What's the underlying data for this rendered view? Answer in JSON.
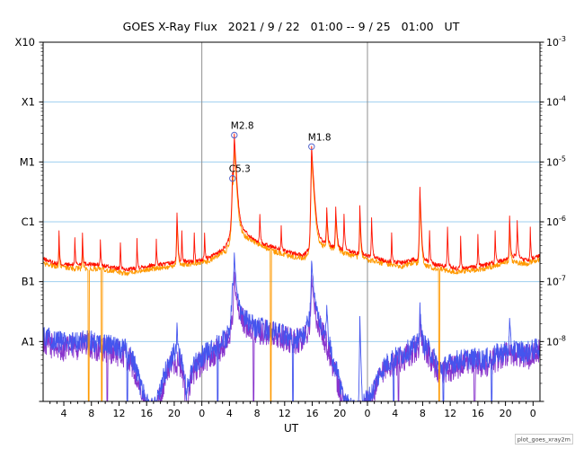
{
  "watermark": "plot_goes_xray2m",
  "chart_data": {
    "type": "line",
    "title": "GOES X-Ray Flux   2021 / 9 / 22   01:00 -- 9 / 25   01:00   UT",
    "xlabel": "UT",
    "x_unit": "hours since 2021-09-22 01:00 UT",
    "x_range": [
      0,
      72
    ],
    "y_scale": "log10 flux (watts/m^2)",
    "y_axis_log10_range": [
      -9,
      -3
    ],
    "grid": true,
    "x_ticks": {
      "positions": [
        3,
        7,
        11,
        15,
        19,
        23,
        27,
        31,
        35,
        39,
        43,
        47,
        51,
        55,
        59,
        63,
        67,
        71
      ],
      "labels": [
        "4",
        "8",
        "12",
        "16",
        "20",
        "0",
        "4",
        "8",
        "12",
        "16",
        "20",
        "0",
        "4",
        "8",
        "12",
        "16",
        "20",
        "0"
      ]
    },
    "y_ticks_left": {
      "labels": [
        "X10",
        "X1",
        "M1",
        "C1",
        "B1",
        "A1"
      ],
      "log10": [
        -3,
        -4,
        -5,
        -6,
        -7,
        -8
      ]
    },
    "y_ticks_right": {
      "mantissa": "10",
      "exponents": [
        "-3",
        "-4",
        "-5",
        "-6",
        "-7",
        "-8"
      ],
      "log10": [
        -3,
        -4,
        -5,
        -6,
        -7,
        -8
      ]
    },
    "gridlines": {
      "horizontal_log10": [
        -4,
        -5,
        -6,
        -7,
        -8
      ],
      "horizontal_color": "#9fcfef",
      "vertical_hours": [
        23,
        47
      ],
      "vertical_color": "#909090"
    },
    "flare_marker_color": "#5566cc",
    "flares": [
      {
        "label": "M2.8",
        "t": 27.7,
        "flux": 2.8e-05
      },
      {
        "label": "C5.3",
        "t": 27.45,
        "flux": 5.3e-06
      },
      {
        "label": "M1.8",
        "t": 38.9,
        "flux": 1.8e-05
      }
    ],
    "series": [
      {
        "name": "xray-short-secondary",
        "color": "#8833cc",
        "noise": 0.22,
        "seed": 97,
        "base": [
          [
            0,
            -8.02
          ],
          [
            2,
            -8.1
          ],
          [
            4,
            -8.12
          ],
          [
            6,
            -8.06
          ],
          [
            8,
            -8.12
          ],
          [
            10,
            -8.16
          ],
          [
            12,
            -8.24
          ],
          [
            13,
            -8.4
          ],
          [
            14,
            -8.85
          ],
          [
            15,
            -9.15
          ],
          [
            16,
            -9.2
          ],
          [
            17,
            -8.9
          ],
          [
            18,
            -8.5
          ],
          [
            19,
            -8.32
          ],
          [
            20,
            -8.42
          ],
          [
            20.8,
            -8.95
          ],
          [
            21.5,
            -8.6
          ],
          [
            22.5,
            -8.4
          ],
          [
            24,
            -8.25
          ],
          [
            25.5,
            -8.15
          ],
          [
            26.8,
            -8.0
          ],
          [
            27.7,
            -7.45
          ],
          [
            28.5,
            -7.6
          ],
          [
            29.5,
            -7.72
          ],
          [
            30.5,
            -7.82
          ],
          [
            32,
            -7.85
          ],
          [
            33.5,
            -7.9
          ],
          [
            35,
            -7.96
          ],
          [
            36.5,
            -8.0
          ],
          [
            37.8,
            -7.95
          ],
          [
            38.9,
            -7.6
          ],
          [
            39.7,
            -7.7
          ],
          [
            40.5,
            -7.85
          ],
          [
            41.5,
            -8.2
          ],
          [
            42.5,
            -8.6
          ],
          [
            43.5,
            -9.0
          ],
          [
            44.5,
            -9.2
          ],
          [
            45.5,
            -9.25
          ],
          [
            46.5,
            -9.1
          ],
          [
            47.5,
            -9.0
          ],
          [
            48.5,
            -8.7
          ],
          [
            49.5,
            -8.5
          ],
          [
            50.5,
            -8.4
          ],
          [
            52,
            -8.3
          ],
          [
            53.5,
            -8.18
          ],
          [
            54.8,
            -8.08
          ],
          [
            56,
            -8.25
          ],
          [
            57.5,
            -8.55
          ],
          [
            58.5,
            -8.5
          ],
          [
            60,
            -8.4
          ],
          [
            62,
            -8.36
          ],
          [
            64,
            -8.38
          ],
          [
            66,
            -8.28
          ],
          [
            68,
            -8.2
          ],
          [
            70,
            -8.26
          ],
          [
            72,
            -8.18
          ]
        ],
        "spikes": [
          [
            27.7,
            -6.95,
            0.16,
            0.4
          ],
          [
            38.9,
            -7.0,
            0.14,
            0.5
          ],
          [
            54.6,
            -7.7,
            0.12,
            0.25
          ]
        ],
        "dropouts": [
          [
            9.3,
            0.15
          ],
          [
            21.0,
            0.2
          ],
          [
            30.5,
            0.12
          ],
          [
            51.5,
            0.15
          ],
          [
            62.5,
            0.2
          ]
        ]
      },
      {
        "name": "xray-short-primary",
        "color": "#4455ee",
        "noise": 0.18,
        "seed": 55,
        "base": [
          [
            0,
            -7.9
          ],
          [
            2,
            -8.0
          ],
          [
            4,
            -8.02
          ],
          [
            6,
            -7.98
          ],
          [
            8,
            -8.02
          ],
          [
            10,
            -8.06
          ],
          [
            12,
            -8.14
          ],
          [
            13,
            -8.3
          ],
          [
            14,
            -8.7
          ],
          [
            15,
            -9.05
          ],
          [
            16,
            -9.1
          ],
          [
            17,
            -8.8
          ],
          [
            18,
            -8.4
          ],
          [
            19,
            -8.2
          ],
          [
            20,
            -8.3
          ],
          [
            20.8,
            -8.85
          ],
          [
            21.5,
            -8.5
          ],
          [
            22.5,
            -8.3
          ],
          [
            24,
            -8.15
          ],
          [
            25.5,
            -8.05
          ],
          [
            26.8,
            -7.9
          ],
          [
            27.7,
            -7.35
          ],
          [
            28.5,
            -7.5
          ],
          [
            29.5,
            -7.65
          ],
          [
            30.5,
            -7.75
          ],
          [
            32,
            -7.78
          ],
          [
            33.5,
            -7.84
          ],
          [
            35,
            -7.9
          ],
          [
            36.5,
            -7.95
          ],
          [
            37.8,
            -7.9
          ],
          [
            38.9,
            -7.5
          ],
          [
            39.7,
            -7.6
          ],
          [
            40.5,
            -7.78
          ],
          [
            41.5,
            -8.1
          ],
          [
            42.5,
            -8.5
          ],
          [
            43.5,
            -8.9
          ],
          [
            44.5,
            -9.1
          ],
          [
            45.5,
            -9.15
          ],
          [
            46.5,
            -9.0
          ],
          [
            47.5,
            -8.9
          ],
          [
            48.5,
            -8.6
          ],
          [
            49.5,
            -8.4
          ],
          [
            50.5,
            -8.3
          ],
          [
            52,
            -8.22
          ],
          [
            53.5,
            -8.1
          ],
          [
            54.8,
            -8.0
          ],
          [
            56,
            -8.15
          ],
          [
            57.5,
            -8.45
          ],
          [
            58.5,
            -8.4
          ],
          [
            60,
            -8.32
          ],
          [
            62,
            -8.28
          ],
          [
            64,
            -8.3
          ],
          [
            66,
            -8.2
          ],
          [
            68,
            -8.12
          ],
          [
            70,
            -8.18
          ],
          [
            72,
            -8.1
          ]
        ],
        "spikes": [
          [
            19.4,
            -7.8,
            0.12,
            0.2
          ],
          [
            27.45,
            -7.2,
            0.2,
            0.25
          ],
          [
            27.7,
            -6.6,
            0.16,
            0.4
          ],
          [
            38.9,
            -6.7,
            0.14,
            0.5
          ],
          [
            41.1,
            -7.5,
            0.12,
            0.25
          ],
          [
            45.9,
            -7.6,
            0.1,
            0.2
          ],
          [
            54.6,
            -7.45,
            0.12,
            0.25
          ],
          [
            67.6,
            -7.8,
            0.1,
            0.2
          ]
        ],
        "dropouts": [
          [
            12.2,
            0.15
          ],
          [
            25.3,
            0.12
          ],
          [
            36.2,
            0.12
          ],
          [
            50.8,
            0.15
          ],
          [
            58.0,
            0.15
          ],
          [
            65.0,
            0.12
          ]
        ]
      },
      {
        "name": "xray-long-secondary",
        "color": "#ff9900",
        "noise": 0.045,
        "seed": 77,
        "base": [
          [
            0,
            -6.7
          ],
          [
            4,
            -6.78
          ],
          [
            8,
            -6.78
          ],
          [
            12,
            -6.86
          ],
          [
            16,
            -6.78
          ],
          [
            20,
            -6.72
          ],
          [
            24,
            -6.66
          ],
          [
            26.5,
            -6.48
          ],
          [
            28,
            -6.12
          ],
          [
            29.5,
            -6.26
          ],
          [
            31,
            -6.36
          ],
          [
            33,
            -6.48
          ],
          [
            36,
            -6.58
          ],
          [
            38,
            -6.6
          ],
          [
            39.3,
            -6.34
          ],
          [
            41,
            -6.42
          ],
          [
            44,
            -6.54
          ],
          [
            48,
            -6.66
          ],
          [
            52,
            -6.74
          ],
          [
            54,
            -6.68
          ],
          [
            57,
            -6.78
          ],
          [
            60,
            -6.84
          ],
          [
            64,
            -6.78
          ],
          [
            67.5,
            -6.66
          ],
          [
            70,
            -6.7
          ],
          [
            72,
            -6.62
          ]
        ],
        "spikes": [
          [
            2.3,
            -6.4,
            0.08,
            0.15
          ],
          [
            5.7,
            -6.45,
            0.08,
            0.15
          ],
          [
            19.4,
            -6.05,
            0.12,
            0.22
          ],
          [
            27.45,
            -5.4,
            0.2,
            0.25
          ],
          [
            27.7,
            -4.72,
            0.16,
            0.45
          ],
          [
            38.9,
            -4.92,
            0.14,
            0.5
          ],
          [
            41.1,
            -6.0,
            0.12,
            0.25
          ],
          [
            42.4,
            -6.0,
            0.12,
            0.3
          ],
          [
            45.9,
            -5.95,
            0.1,
            0.22
          ],
          [
            54.6,
            -5.6,
            0.12,
            0.28
          ],
          [
            67.6,
            -6.15,
            0.1,
            0.2
          ]
        ],
        "dropouts": [
          [
            6.6,
            0.12
          ],
          [
            8.5,
            0.12
          ],
          [
            33.0,
            0.12
          ],
          [
            57.4,
            0.12
          ]
        ]
      },
      {
        "name": "xray-long-primary",
        "color": "#ff1100",
        "noise": 0.035,
        "seed": 13,
        "base": [
          [
            0,
            -6.62
          ],
          [
            2,
            -6.7
          ],
          [
            4,
            -6.72
          ],
          [
            6,
            -6.7
          ],
          [
            8,
            -6.72
          ],
          [
            10,
            -6.76
          ],
          [
            12,
            -6.8
          ],
          [
            14,
            -6.76
          ],
          [
            16,
            -6.72
          ],
          [
            18,
            -6.7
          ],
          [
            20,
            -6.66
          ],
          [
            22,
            -6.66
          ],
          [
            24,
            -6.6
          ],
          [
            25.5,
            -6.5
          ],
          [
            26.5,
            -6.4
          ],
          [
            27.3,
            -6.2
          ],
          [
            28,
            -6.05
          ],
          [
            28.8,
            -6.1
          ],
          [
            29.6,
            -6.2
          ],
          [
            30.6,
            -6.3
          ],
          [
            32,
            -6.38
          ],
          [
            34,
            -6.44
          ],
          [
            36,
            -6.52
          ],
          [
            37.8,
            -6.56
          ],
          [
            38.6,
            -6.45
          ],
          [
            39.3,
            -6.28
          ],
          [
            40,
            -6.3
          ],
          [
            41,
            -6.36
          ],
          [
            42.5,
            -6.44
          ],
          [
            44,
            -6.48
          ],
          [
            46,
            -6.54
          ],
          [
            48,
            -6.6
          ],
          [
            50,
            -6.66
          ],
          [
            52,
            -6.68
          ],
          [
            54,
            -6.62
          ],
          [
            55.5,
            -6.64
          ],
          [
            57,
            -6.72
          ],
          [
            58.5,
            -6.74
          ],
          [
            60,
            -6.78
          ],
          [
            62,
            -6.76
          ],
          [
            64,
            -6.72
          ],
          [
            66,
            -6.66
          ],
          [
            67.5,
            -6.6
          ],
          [
            68.5,
            -6.56
          ],
          [
            70,
            -6.64
          ],
          [
            71,
            -6.6
          ],
          [
            72,
            -6.56
          ]
        ],
        "spikes": [
          [
            2.3,
            -6.3,
            0.08,
            0.15
          ],
          [
            4.6,
            -6.45,
            0.08,
            0.15
          ],
          [
            5.7,
            -6.35,
            0.08,
            0.15
          ],
          [
            8.3,
            -6.5,
            0.08,
            0.15
          ],
          [
            11.2,
            -6.55,
            0.08,
            0.15
          ],
          [
            13.6,
            -6.45,
            0.08,
            0.15
          ],
          [
            16.4,
            -6.5,
            0.08,
            0.15
          ],
          [
            19.4,
            -5.92,
            0.12,
            0.22
          ],
          [
            20.1,
            -6.3,
            0.08,
            0.15
          ],
          [
            21.9,
            -6.35,
            0.08,
            0.15
          ],
          [
            23.4,
            -6.4,
            0.08,
            0.15
          ],
          [
            27.45,
            -5.28,
            0.2,
            0.25
          ],
          [
            27.7,
            -4.55,
            0.16,
            0.45
          ],
          [
            31.4,
            -6.05,
            0.1,
            0.2
          ],
          [
            34.5,
            -6.3,
            0.08,
            0.15
          ],
          [
            38.9,
            -4.75,
            0.14,
            0.5
          ],
          [
            41.1,
            -5.9,
            0.12,
            0.25
          ],
          [
            42.4,
            -5.85,
            0.12,
            0.3
          ],
          [
            43.6,
            -6.0,
            0.1,
            0.2
          ],
          [
            45.9,
            -5.8,
            0.1,
            0.22
          ],
          [
            47.6,
            -6.05,
            0.1,
            0.2
          ],
          [
            50.5,
            -6.35,
            0.08,
            0.15
          ],
          [
            54.6,
            -5.45,
            0.12,
            0.28
          ],
          [
            56.0,
            -6.3,
            0.08,
            0.15
          ],
          [
            58.6,
            -6.2,
            0.1,
            0.18
          ],
          [
            60.5,
            -6.4,
            0.08,
            0.15
          ],
          [
            63.0,
            -6.35,
            0.08,
            0.15
          ],
          [
            65.5,
            -6.3,
            0.08,
            0.15
          ],
          [
            67.6,
            -6.0,
            0.1,
            0.2
          ],
          [
            68.7,
            -6.1,
            0.1,
            0.2
          ],
          [
            70.6,
            -6.25,
            0.08,
            0.15
          ]
        ],
        "dropouts": []
      }
    ]
  }
}
